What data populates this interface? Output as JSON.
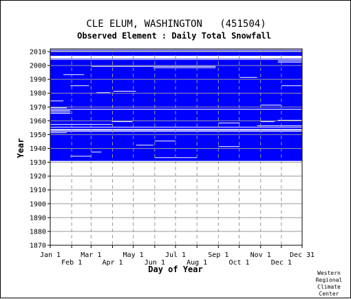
{
  "chart_data": {
    "type": "heatmap",
    "title": "CLE ELUM, WASHINGTON   (451504)",
    "subtitle": "Observed Element : Daily Total Snowfall",
    "xlabel": "Day of Year",
    "ylabel": "Year",
    "credit": [
      "Western",
      "Regional",
      "Climate",
      "Center"
    ],
    "x_ticks": [
      "Jan 1",
      "Feb 1",
      "Mar 1",
      "Apr 1",
      "May 1",
      "Jun 1",
      "Jul 1",
      "Aug 1",
      "Sep 1",
      "Oct 1",
      "Nov 1",
      "Dec 1",
      "Dec 31"
    ],
    "x_tick_days": [
      1,
      32,
      60,
      91,
      121,
      152,
      182,
      213,
      244,
      274,
      305,
      335,
      365
    ],
    "y_ticks": [
      "1870",
      "1880",
      "1890",
      "1900",
      "1910",
      "1920",
      "1930",
      "1940",
      "1950",
      "1960",
      "1970",
      "1980",
      "1990",
      "2000",
      "2010"
    ],
    "ylim": [
      1870,
      2012
    ],
    "xlim": [
      1,
      365
    ],
    "data_years": [
      1931,
      2011
    ],
    "data_color": "#0000ff",
    "missing_color": "#ffffff",
    "grid": true,
    "missing_full_years": [
      1953,
      2005,
      2006
    ],
    "missing_segments": [
      {
        "year": 2010,
        "from": 1,
        "to": 365
      },
      {
        "year": 2011,
        "from": 1,
        "to": 365
      },
      {
        "year": 2004,
        "from": 1,
        "to": 365
      },
      {
        "year": 1968,
        "from": 1,
        "to": 365
      },
      {
        "year": 1967,
        "from": 1,
        "to": 30
      },
      {
        "year": 1966,
        "from": 1,
        "to": 30
      },
      {
        "year": 1965,
        "from": 1,
        "to": 30
      },
      {
        "year": 1955,
        "from": 1,
        "to": 365
      },
      {
        "year": 1957,
        "from": 1,
        "to": 90
      },
      {
        "year": 1952,
        "from": 1,
        "to": 365
      },
      {
        "year": 2003,
        "from": 330,
        "to": 365
      },
      {
        "year": 2002,
        "from": 330,
        "to": 365
      },
      {
        "year": 1999,
        "from": 60,
        "to": 240
      },
      {
        "year": 1998,
        "from": 150,
        "to": 240
      },
      {
        "year": 1993,
        "from": 20,
        "to": 50
      },
      {
        "year": 1991,
        "from": 275,
        "to": 300
      },
      {
        "year": 1985,
        "from": 30,
        "to": 57
      },
      {
        "year": 1985,
        "from": 335,
        "to": 365
      },
      {
        "year": 1981,
        "from": 92,
        "to": 125
      },
      {
        "year": 1980,
        "from": 68,
        "to": 88
      },
      {
        "year": 1974,
        "from": 1,
        "to": 20
      },
      {
        "year": 1971,
        "from": 305,
        "to": 335
      },
      {
        "year": 1969,
        "from": 1,
        "to": 25
      },
      {
        "year": 1968,
        "from": 340,
        "to": 365
      },
      {
        "year": 1960,
        "from": 330,
        "to": 365
      },
      {
        "year": 1959,
        "from": 305,
        "to": 325
      },
      {
        "year": 1959,
        "from": 90,
        "to": 120
      },
      {
        "year": 1958,
        "from": 244,
        "to": 275
      },
      {
        "year": 1956,
        "from": 300,
        "to": 365
      },
      {
        "year": 1951,
        "from": 1,
        "to": 25
      },
      {
        "year": 1945,
        "from": 152,
        "to": 182
      },
      {
        "year": 1942,
        "from": 125,
        "to": 150
      },
      {
        "year": 1941,
        "from": 244,
        "to": 275
      },
      {
        "year": 1937,
        "from": 60,
        "to": 75
      },
      {
        "year": 1934,
        "from": 30,
        "to": 60
      },
      {
        "year": 1933,
        "from": 152,
        "to": 213
      }
    ]
  }
}
